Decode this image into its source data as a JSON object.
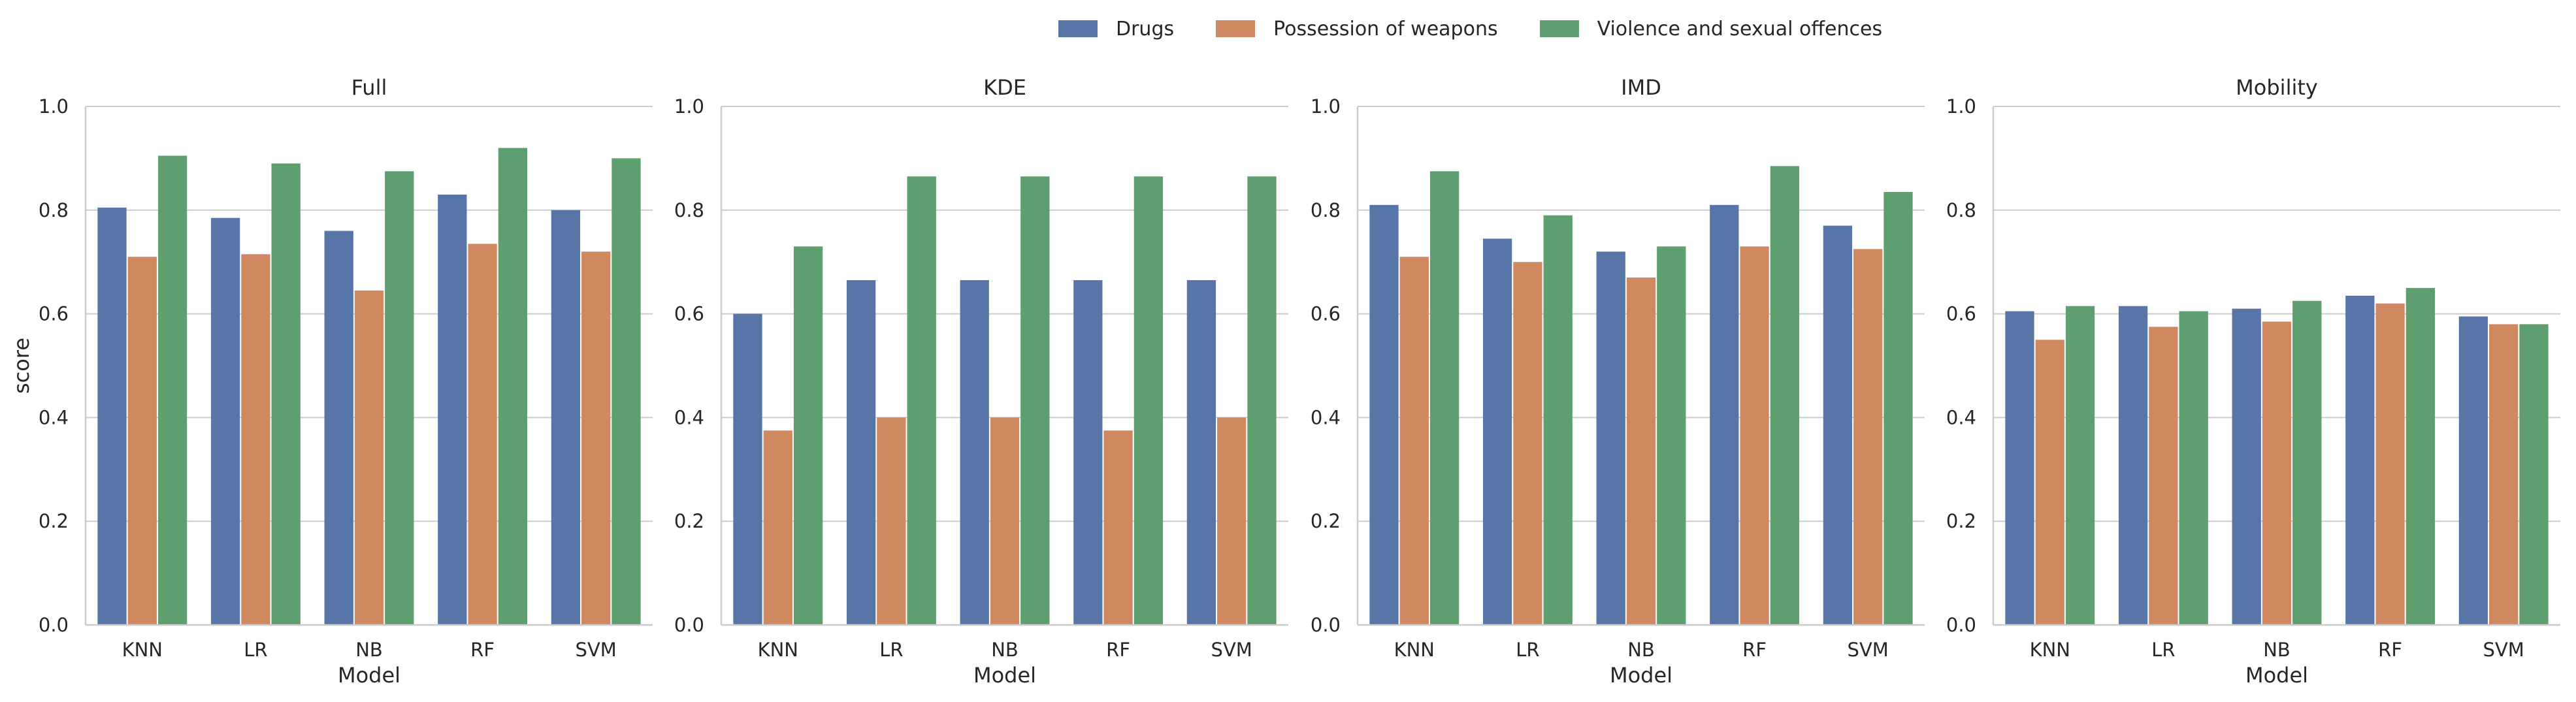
{
  "colors": {
    "drugs": "#5875a8",
    "weapons": "#cf885f",
    "violence": "#5f9e6e",
    "grid": "#cccccc",
    "axis": "#cccccc"
  },
  "legend": {
    "items": [
      {
        "label": "Drugs",
        "color_key": "drugs"
      },
      {
        "label": "Possession of weapons",
        "color_key": "weapons"
      },
      {
        "label": "Violence and sexual offences",
        "color_key": "violence"
      }
    ],
    "placement": "top-center"
  },
  "chart_data": [
    {
      "type": "bar",
      "title": "Full",
      "xlabel": "Model",
      "ylabel": "score",
      "ylim": [
        0,
        1.0
      ],
      "yticks": [
        "0.0",
        "0.2",
        "0.4",
        "0.6",
        "0.8",
        "1.0"
      ],
      "grid": true,
      "categories": [
        "KNN",
        "LR",
        "NB",
        "RF",
        "SVM"
      ],
      "series": [
        {
          "name": "Drugs",
          "values": [
            0.805,
            0.785,
            0.76,
            0.83,
            0.8
          ]
        },
        {
          "name": "Possession of weapons",
          "values": [
            0.71,
            0.715,
            0.645,
            0.735,
            0.72
          ]
        },
        {
          "name": "Violence and sexual offences",
          "values": [
            0.905,
            0.89,
            0.875,
            0.92,
            0.9
          ]
        }
      ]
    },
    {
      "type": "bar",
      "title": "KDE",
      "xlabel": "Model",
      "ylabel": "",
      "ylim": [
        0,
        1.0
      ],
      "yticks": [
        "0.0",
        "0.2",
        "0.4",
        "0.6",
        "0.8",
        "1.0"
      ],
      "grid": true,
      "categories": [
        "KNN",
        "LR",
        "NB",
        "RF",
        "SVM"
      ],
      "series": [
        {
          "name": "Drugs",
          "values": [
            0.6,
            0.665,
            0.665,
            0.665,
            0.665
          ]
        },
        {
          "name": "Possession of weapons",
          "values": [
            0.375,
            0.4,
            0.4,
            0.375,
            0.4
          ]
        },
        {
          "name": "Violence and sexual offences",
          "values": [
            0.73,
            0.865,
            0.865,
            0.865,
            0.865
          ]
        }
      ]
    },
    {
      "type": "bar",
      "title": "IMD",
      "xlabel": "Model",
      "ylabel": "",
      "ylim": [
        0,
        1.0
      ],
      "yticks": [
        "0.0",
        "0.2",
        "0.4",
        "0.6",
        "0.8",
        "1.0"
      ],
      "grid": true,
      "categories": [
        "KNN",
        "LR",
        "NB",
        "RF",
        "SVM"
      ],
      "series": [
        {
          "name": "Drugs",
          "values": [
            0.81,
            0.745,
            0.72,
            0.81,
            0.77
          ]
        },
        {
          "name": "Possession of weapons",
          "values": [
            0.71,
            0.7,
            0.67,
            0.73,
            0.725
          ]
        },
        {
          "name": "Violence and sexual offences",
          "values": [
            0.875,
            0.79,
            0.73,
            0.885,
            0.835
          ]
        }
      ]
    },
    {
      "type": "bar",
      "title": "Mobility",
      "xlabel": "Model",
      "ylabel": "",
      "ylim": [
        0,
        1.0
      ],
      "yticks": [
        "0.0",
        "0.2",
        "0.4",
        "0.6",
        "0.8",
        "1.0"
      ],
      "grid": true,
      "categories": [
        "KNN",
        "LR",
        "NB",
        "RF",
        "SVM"
      ],
      "series": [
        {
          "name": "Drugs",
          "values": [
            0.605,
            0.615,
            0.61,
            0.635,
            0.595
          ]
        },
        {
          "name": "Possession of weapons",
          "values": [
            0.55,
            0.575,
            0.585,
            0.62,
            0.58
          ]
        },
        {
          "name": "Violence and sexual offences",
          "values": [
            0.615,
            0.605,
            0.625,
            0.65,
            0.58
          ]
        }
      ]
    }
  ]
}
